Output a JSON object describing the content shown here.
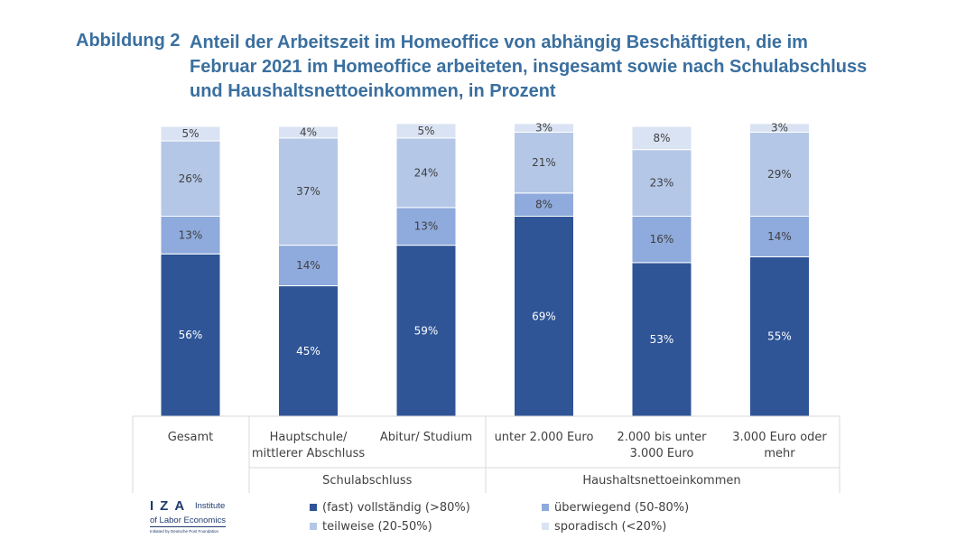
{
  "figure": {
    "label": "Abbildung 2",
    "title": "Anteil der Arbeitszeit im Homeoffice von abhängig Beschäftigten, die im Februar 2021 im Homeoffice arbeiteten, insgesamt sowie nach Schulabschluss und Haushaltsnettoeinkommen, in Prozent"
  },
  "logo": {
    "iza": "IZA",
    "institute": "Institute",
    "labor": "of Labor Economics",
    "initiated": "Initiated by Deutsche Post Foundation"
  },
  "chart_data": {
    "type": "bar",
    "stacked": true,
    "title": "",
    "xlabel": "",
    "ylabel": "",
    "ylim": [
      0,
      100
    ],
    "grid": false,
    "legend_position": "bottom",
    "categories": [
      [
        "Gesamt"
      ],
      [
        "Hauptschule/",
        "mittlerer Abschluss"
      ],
      [
        "Abitur/ Studium"
      ],
      [
        "unter 2.000 Euro"
      ],
      [
        "2.000 bis unter",
        "3.000 Euro"
      ],
      [
        "3.000 Euro oder",
        "mehr"
      ]
    ],
    "groups": [
      {
        "label": "",
        "categories": [
          0
        ]
      },
      {
        "label": "Schulabschluss",
        "categories": [
          1,
          2
        ]
      },
      {
        "label": "Haushaltsnettoeinkommen",
        "categories": [
          3,
          4,
          5
        ]
      }
    ],
    "series": [
      {
        "name": "(fast) vollständig (>80%)",
        "color": "#2f5597",
        "label_color": "#ffffff",
        "values": [
          56,
          45,
          59,
          69,
          53,
          55
        ],
        "labels": [
          "56%",
          "45%",
          "59%",
          "69%",
          "53%",
          "55%"
        ]
      },
      {
        "name": "überwiegend (50-80%)",
        "color": "#8faadc",
        "label_color": "#404040",
        "values": [
          13,
          14,
          13,
          8,
          16,
          14
        ],
        "labels": [
          "13%",
          "14%",
          "13%",
          "8%",
          "16%",
          "14%"
        ]
      },
      {
        "name": "teilweise (20-50%)",
        "color": "#b4c7e7",
        "label_color": "#404040",
        "values": [
          26,
          37,
          24,
          21,
          23,
          29
        ],
        "labels": [
          "26%",
          "37%",
          "24%",
          "21%",
          "23%",
          "29%"
        ]
      },
      {
        "name": "sporadisch (<20%)",
        "color": "#dae3f3",
        "label_color": "#404040",
        "values": [
          5,
          4,
          5,
          3,
          8,
          3
        ],
        "labels": [
          "5%",
          "4%",
          "5%",
          "3%",
          "8%",
          "3%"
        ]
      }
    ]
  }
}
